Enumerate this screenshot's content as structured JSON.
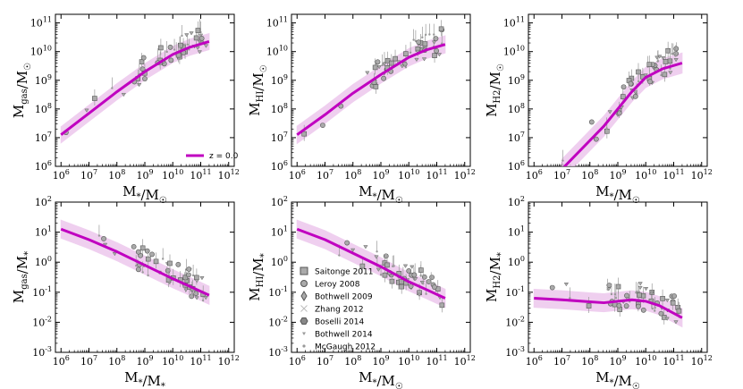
{
  "figure": {
    "legend_top": {
      "line_label": "z = 0.0",
      "placement": "panel-1 lower-right"
    },
    "legend_main": {
      "placement": "panel-5 lower-left",
      "entries": [
        "Saitonge 2011",
        "Leroy 2008",
        "Bothwell 2009",
        "Zhang 2012",
        "Boselli 2014",
        "Bothwell 2014",
        "McGaugh 2012"
      ],
      "markers": [
        "square",
        "circle",
        "diamond",
        "x",
        "hexagon",
        "triangle-down",
        "dot"
      ]
    }
  },
  "colors": {
    "model": "#c000c0",
    "band": "#ecc4ec",
    "points": "#aaaaaa",
    "point_edge": "#555555"
  },
  "chart_data": [
    {
      "type": "line",
      "xlabel": "M*/M☉",
      "ylabel": "Mgas/M☉",
      "x_ticks": [
        "10^6",
        "10^7",
        "10^8",
        "10^9",
        "10^10",
        "10^11",
        "10^12"
      ],
      "y_ticks": [
        "10^6",
        "10^7",
        "10^8",
        "10^9",
        "10^10",
        "10^11"
      ],
      "xlim_log10": [
        5.8,
        12.2
      ],
      "ylim_log10": [
        6,
        11.3
      ],
      "log_x": true,
      "log_y": true,
      "series": [
        {
          "name": "z = 0.0",
          "x_log10": [
            6,
            7,
            8,
            9,
            10,
            10.6,
            11.3
          ],
          "y_log10": [
            7.1,
            7.85,
            8.6,
            9.3,
            9.9,
            10.15,
            10.35
          ],
          "band_dex": 0.28
        }
      ]
    },
    {
      "type": "line",
      "xlabel": "M*/M☉",
      "ylabel": "MHI/M☉",
      "x_ticks": [
        "10^6",
        "10^7",
        "10^8",
        "10^9",
        "10^10",
        "10^11",
        "10^12"
      ],
      "y_ticks": [
        "10^6",
        "10^7",
        "10^8",
        "10^9",
        "10^10",
        "10^11"
      ],
      "xlim_log10": [
        5.8,
        12.2
      ],
      "ylim_log10": [
        6,
        11.3
      ],
      "log_x": true,
      "log_y": true,
      "series": [
        {
          "name": "z = 0.0",
          "x_log10": [
            6,
            7,
            8,
            9,
            10,
            10.6,
            11.3
          ],
          "y_log10": [
            7.1,
            7.8,
            8.55,
            9.2,
            9.8,
            10.05,
            10.25
          ],
          "band_dex": 0.3
        }
      ]
    },
    {
      "type": "line",
      "xlabel": "M*/M☉",
      "ylabel": "MH2/M☉",
      "x_ticks": [
        "10^6",
        "10^7",
        "10^8",
        "10^9",
        "10^10",
        "10^11",
        "10^12"
      ],
      "y_ticks": [
        "10^6",
        "10^7",
        "10^8",
        "10^9",
        "10^10",
        "10^11"
      ],
      "xlim_log10": [
        5.8,
        12.2
      ],
      "ylim_log10": [
        6,
        11.3
      ],
      "log_x": true,
      "log_y": true,
      "series": [
        {
          "name": "z = 0.0",
          "x_log10": [
            7.0,
            8.0,
            8.5,
            9.0,
            9.5,
            10.0,
            10.6,
            11.3
          ],
          "y_log10": [
            5.9,
            6.9,
            7.4,
            8.0,
            8.6,
            9.1,
            9.4,
            9.6
          ],
          "band_dex": 0.35
        }
      ]
    },
    {
      "type": "line",
      "xlabel": "M*/M*",
      "ylabel": "Mgas/M*",
      "x_ticks": [
        "10^6",
        "10^7",
        "10^8",
        "10^9",
        "10^10",
        "10^11",
        "10^12"
      ],
      "y_ticks": [
        "10^-3",
        "10^-2",
        "10^-1",
        "10^0",
        "10^1",
        "10^2"
      ],
      "xlim_log10": [
        5.8,
        12.2
      ],
      "ylim_log10": [
        -3,
        2
      ],
      "log_x": true,
      "log_y": true,
      "series": [
        {
          "name": "z = 0.0",
          "x_log10": [
            6,
            7,
            8,
            9,
            10,
            10.6,
            11.3
          ],
          "y_log10": [
            1.1,
            0.75,
            0.35,
            -0.1,
            -0.55,
            -0.8,
            -1.1
          ],
          "band_dex": 0.3
        }
      ]
    },
    {
      "type": "line",
      "xlabel": "M*/M☉",
      "ylabel": "MHI/M*",
      "x_ticks": [
        "10^6",
        "10^7",
        "10^8",
        "10^9",
        "10^10",
        "10^11",
        "10^12"
      ],
      "y_ticks": [
        "10^-3",
        "10^-2",
        "10^-1",
        "10^0",
        "10^1",
        "10^2"
      ],
      "xlim_log10": [
        5.8,
        12.2
      ],
      "ylim_log10": [
        -3,
        2
      ],
      "log_x": true,
      "log_y": true,
      "series": [
        {
          "name": "z = 0.0",
          "x_log10": [
            6,
            7,
            8,
            9,
            10,
            10.6,
            11.3
          ],
          "y_log10": [
            1.1,
            0.75,
            0.3,
            -0.15,
            -0.65,
            -0.9,
            -1.2
          ],
          "band_dex": 0.3
        }
      ]
    },
    {
      "type": "line",
      "xlabel": "M*/M☉",
      "ylabel": "MH2/M*",
      "x_ticks": [
        "10^6",
        "10^7",
        "10^8",
        "10^9",
        "10^10",
        "10^11",
        "10^12"
      ],
      "y_ticks": [
        "10^-3",
        "10^-2",
        "10^-1",
        "10^0",
        "10^1",
        "10^2"
      ],
      "xlim_log10": [
        5.8,
        12.2
      ],
      "ylim_log10": [
        -3,
        2
      ],
      "log_x": true,
      "log_y": true,
      "series": [
        {
          "name": "z = 0.0",
          "x_log10": [
            6,
            7,
            8,
            8.5,
            9,
            9.5,
            10,
            10.5,
            11.3
          ],
          "y_log10": [
            -1.2,
            -1.25,
            -1.32,
            -1.35,
            -1.3,
            -1.25,
            -1.3,
            -1.45,
            -1.85
          ],
          "band_dex": 0.3
        }
      ]
    }
  ]
}
